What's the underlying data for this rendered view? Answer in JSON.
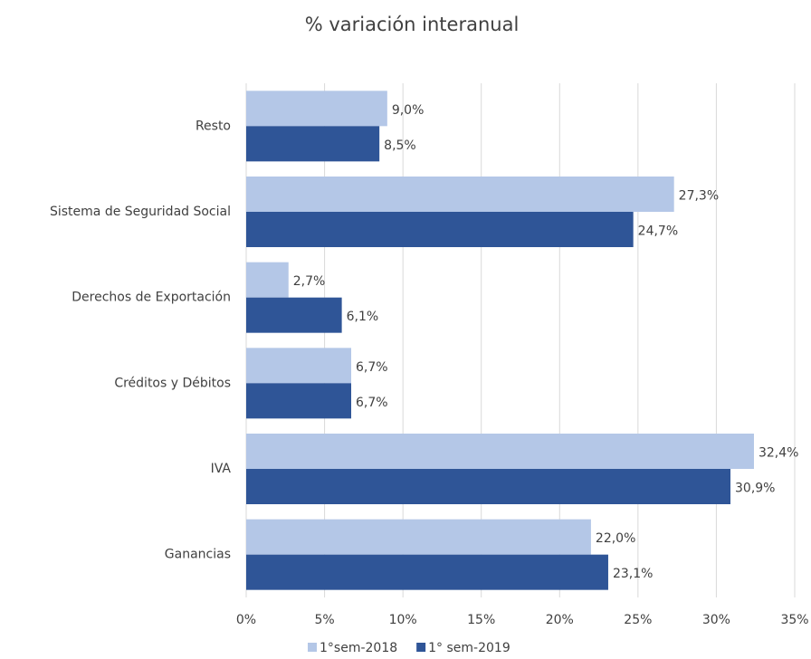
{
  "chart_data": {
    "type": "barh",
    "title": "% variación interanual",
    "categories": [
      "Resto",
      "Sistema de Seguridad Social",
      "Derechos de Exportación",
      "Créditos y Débitos",
      "IVA",
      "Ganancias"
    ],
    "series": [
      {
        "name": "1°sem-2018",
        "color": "#b4c7e7",
        "values": [
          9.0,
          27.3,
          2.7,
          6.7,
          32.4,
          22.0
        ],
        "value_labels": [
          "9,0%",
          "27,3%",
          "2,7%",
          "6,7%",
          "32,4%",
          "22,0%"
        ]
      },
      {
        "name": "1° sem-2019",
        "color": "#2f5597",
        "values": [
          8.5,
          24.7,
          6.1,
          6.7,
          30.9,
          23.1
        ],
        "value_labels": [
          "8,5%",
          "24,7%",
          "6,1%",
          "6,7%",
          "30,9%",
          "23,1%"
        ]
      }
    ],
    "xlim": [
      0,
      35
    ],
    "xticks": [
      {
        "value": 0,
        "label": "0%"
      },
      {
        "value": 5,
        "label": "5%"
      },
      {
        "value": 10,
        "label": "10%"
      },
      {
        "value": 15,
        "label": "15%"
      },
      {
        "value": 20,
        "label": "20%"
      },
      {
        "value": 25,
        "label": "25%"
      },
      {
        "value": 30,
        "label": "30%"
      },
      {
        "value": 35,
        "label": "35%"
      }
    ],
    "grid": true
  }
}
